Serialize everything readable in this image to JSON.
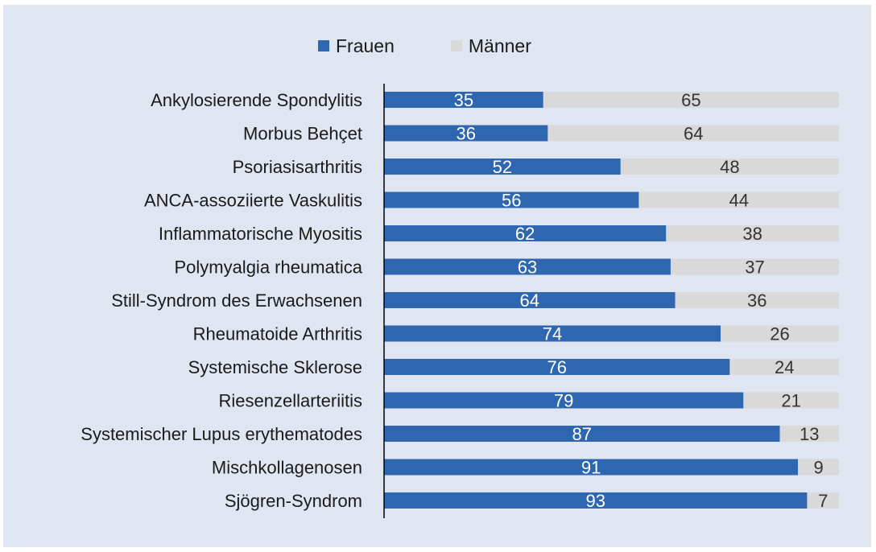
{
  "chart_data": {
    "type": "bar",
    "orientation": "horizontal",
    "stacked": true,
    "categories": [
      "Ankylosierende Spondylitis",
      "Morbus Behçet",
      "Psoriasisarthritis",
      "ANCA-assoziierte Vaskulitis",
      "Inflammatorische Myositis",
      "Polymyalgia rheumatica",
      "Still-Syndrom des Erwachsenen",
      "Rheumatoide Arthritis",
      "Systemische Sklerose",
      "Riesenzellarteriitis",
      "Systemischer Lupus erythematodes",
      "Mischkollagenosen",
      "Sjögren-Syndrom"
    ],
    "series": [
      {
        "name": "Frauen",
        "color": "#2e66b0",
        "label_color": "#ffffff",
        "values": [
          35,
          36,
          52,
          56,
          62,
          63,
          64,
          74,
          76,
          79,
          87,
          91,
          93
        ]
      },
      {
        "name": "Männer",
        "color": "#d9d9d9",
        "label_color": "#333333",
        "values": [
          65,
          64,
          48,
          44,
          38,
          37,
          36,
          26,
          24,
          21,
          13,
          9,
          7
        ]
      }
    ],
    "xlim": [
      0,
      100
    ],
    "grid": false,
    "legend_position": "top-center",
    "background": "#dfe6f1"
  }
}
